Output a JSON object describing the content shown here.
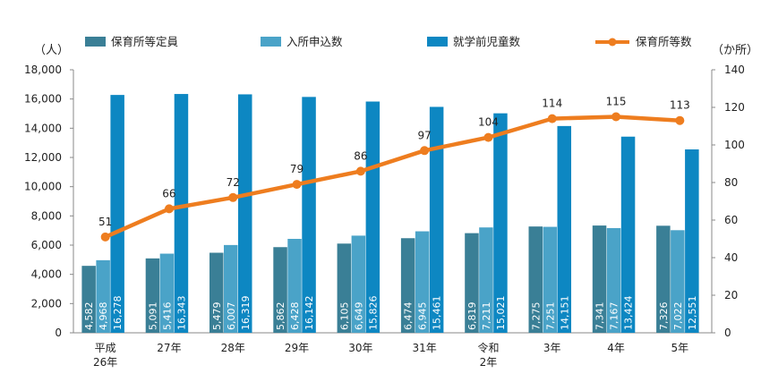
{
  "chart_data": {
    "type": "bar+line",
    "categories": [
      [
        "平成",
        "26年"
      ],
      [
        "27年"
      ],
      [
        "28年"
      ],
      [
        "29年"
      ],
      [
        "30年"
      ],
      [
        "31年"
      ],
      [
        "令和",
        "2年"
      ],
      [
        "3年"
      ],
      [
        "4年"
      ],
      [
        "5年"
      ]
    ],
    "series": [
      {
        "name": "保育所等定員",
        "type": "bar",
        "axis": "left",
        "color": "#3a7f96",
        "values": [
          4582,
          5091,
          5479,
          5862,
          6105,
          6474,
          6819,
          7275,
          7341,
          7326
        ],
        "labels": [
          "4,582",
          "5,091",
          "5,479",
          "5,862",
          "6,105",
          "6,474",
          "6,819",
          "7,275",
          "7,341",
          "7,326"
        ]
      },
      {
        "name": "入所申込数",
        "type": "bar",
        "axis": "left",
        "color": "#4aa3c8",
        "values": [
          4968,
          5416,
          6007,
          6428,
          6649,
          6945,
          7211,
          7251,
          7167,
          7022
        ],
        "labels": [
          "4,968",
          "5,416",
          "6,007",
          "6,428",
          "6,649",
          "6,945",
          "7,211",
          "7,251",
          "7,167",
          "7,022"
        ]
      },
      {
        "name": "就学前児童数",
        "type": "bar",
        "axis": "left",
        "color": "#0d87c2",
        "values": [
          16278,
          16343,
          16319,
          16142,
          15826,
          15461,
          15021,
          14151,
          13424,
          12551
        ],
        "labels": [
          "16,278",
          "16,343",
          "16,319",
          "16,142",
          "15,826",
          "15,461",
          "15,021",
          "14,151",
          "13,424",
          "12,551"
        ]
      },
      {
        "name": "保育所等数",
        "type": "line",
        "axis": "right",
        "color": "#ee7d1f",
        "values": [
          51,
          66,
          72,
          79,
          86,
          97,
          104,
          114,
          115,
          113
        ],
        "labels": [
          "51",
          "66",
          "72",
          "79",
          "86",
          "97",
          "104",
          "114",
          "115",
          "113"
        ]
      }
    ],
    "y_left": {
      "unit": "（人）",
      "min": 0,
      "max": 18000,
      "ticks": [
        "0",
        "2,000",
        "4,000",
        "6,000",
        "8,000",
        "10,000",
        "12,000",
        "14,000",
        "16,000",
        "18,000"
      ]
    },
    "y_right": {
      "unit": "（か所）",
      "min": 0,
      "max": 140,
      "ticks": [
        "0",
        "20",
        "40",
        "60",
        "80",
        "100",
        "120",
        "140"
      ]
    },
    "legend_position": "top",
    "grid": false
  }
}
